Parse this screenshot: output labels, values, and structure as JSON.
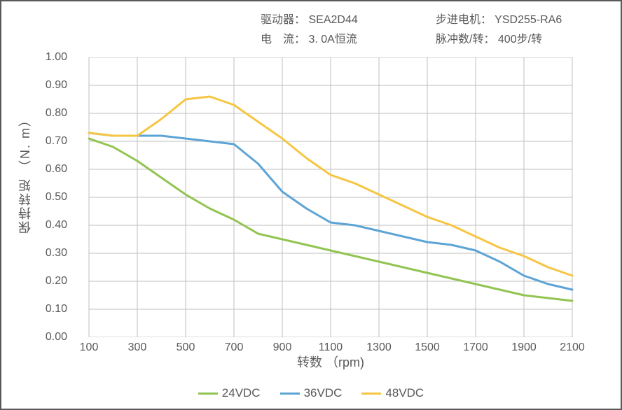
{
  "header": {
    "driver_label": "驱动器：",
    "driver_value": "SEA2D44",
    "motor_label": "步进电机：",
    "motor_value": "YSD255-RA6",
    "current_label": "电　流：",
    "current_value": "3. 0A恒流",
    "pulses_label": "脉冲数/转：",
    "pulses_value": "400步/转"
  },
  "chart": {
    "type": "line",
    "xlabel": "转数 （rpm)",
    "ylabel": "保持转矩 （N. m）",
    "xlim": [
      100,
      2100
    ],
    "xtick_step": 200,
    "xticks": [
      100,
      300,
      500,
      700,
      900,
      1100,
      1300,
      1500,
      1700,
      1900,
      2100
    ],
    "ylim": [
      0.0,
      1.0
    ],
    "ytick_step": 0.1,
    "yticks": [
      0.0,
      0.1,
      0.2,
      0.3,
      0.4,
      0.5,
      0.6,
      0.7,
      0.8,
      0.9,
      1.0
    ],
    "ytick_labels": [
      "0.00",
      "0.10",
      "0.20",
      "0.30",
      "0.40",
      "0.50",
      "0.60",
      "0.70",
      "0.80",
      "0.90",
      "1.00"
    ],
    "grid_color": "#bfbfbf",
    "axis_color": "#595959",
    "background_color": "#ffffff",
    "line_width": 3,
    "label_fontsize": 18,
    "tick_fontsize": 16,
    "series": [
      {
        "name": "24VDC",
        "color": "#92c451",
        "x": [
          100,
          200,
          300,
          400,
          500,
          600,
          700,
          800,
          900,
          1000,
          1100,
          1200,
          1300,
          1400,
          1500,
          1600,
          1700,
          1800,
          1900,
          2000,
          2100
        ],
        "y": [
          0.71,
          0.68,
          0.63,
          0.57,
          0.51,
          0.46,
          0.42,
          0.37,
          0.35,
          0.33,
          0.31,
          0.29,
          0.27,
          0.25,
          0.23,
          0.21,
          0.19,
          0.17,
          0.15,
          0.14,
          0.13
        ]
      },
      {
        "name": "36VDC",
        "color": "#5da4d6",
        "x": [
          100,
          200,
          300,
          400,
          500,
          600,
          700,
          800,
          900,
          1000,
          1100,
          1200,
          1300,
          1400,
          1500,
          1600,
          1700,
          1800,
          1900,
          2000,
          2100
        ],
        "y": [
          0.73,
          0.72,
          0.72,
          0.72,
          0.71,
          0.7,
          0.69,
          0.62,
          0.52,
          0.46,
          0.41,
          0.4,
          0.38,
          0.36,
          0.34,
          0.33,
          0.31,
          0.27,
          0.22,
          0.19,
          0.17
        ]
      },
      {
        "name": "48VDC",
        "color": "#f6c643",
        "x": [
          100,
          200,
          300,
          400,
          500,
          600,
          700,
          800,
          900,
          1000,
          1100,
          1200,
          1300,
          1400,
          1500,
          1600,
          1700,
          1800,
          1900,
          2000,
          2100
        ],
        "y": [
          0.73,
          0.72,
          0.72,
          0.78,
          0.85,
          0.86,
          0.83,
          0.77,
          0.71,
          0.64,
          0.58,
          0.55,
          0.51,
          0.47,
          0.43,
          0.4,
          0.36,
          0.32,
          0.29,
          0.25,
          0.22
        ]
      }
    ],
    "legend": {
      "items": [
        "24VDC",
        "36VDC",
        "48VDC"
      ]
    }
  }
}
